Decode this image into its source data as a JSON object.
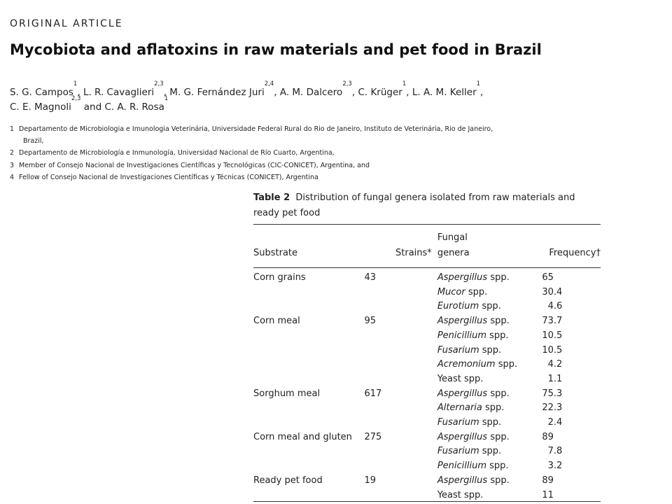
{
  "article": {
    "section_label": "ORIGINAL ARTICLE",
    "title": "Mycobiota and aflatoxins in raw materials and pet food in Brazil",
    "authors_line1": [
      {
        "name": "S. G. Campos",
        "sup": "1"
      },
      {
        "name": "L. R. Cavaglieri",
        "sup": "2,3"
      },
      {
        "name": "M. G. Fernández Juri",
        "sup": "2,4"
      },
      {
        "name": "A. M. Dalcero",
        "sup": "2,3"
      },
      {
        "name": "C. Krüger",
        "sup": "1"
      },
      {
        "name": "L. A. M. Keller",
        "sup": "1"
      }
    ],
    "authors_line2": [
      {
        "name": "C. E. Magnoli",
        "sup": "2,3"
      },
      {
        "name": "C. A. R. Rosa",
        "sup": "1"
      }
    ],
    "authors_and": "and",
    "affiliations": [
      {
        "num": "1",
        "text": "Departamento de Microbiologia e Imunologia Veterinária, Universidade Federal Rural do Rio de Janeiro, Instituto de Veterinária, Rio de Janeiro,",
        "cont": "Brazil,"
      },
      {
        "num": "2",
        "text": "Departamento de Microbiología e Inmunología, Universidad Nacional de Río Cuarto, Argentina,"
      },
      {
        "num": "3",
        "text": "Member of Consejo Nacional de Investigaciones Científicas y Tecnológicas (CIC-CONICET), Argentina, and"
      },
      {
        "num": "4",
        "text": "Fellow of Consejo Nacional de Investigaciones Científicas y Técnicas (CONICET), Argentina"
      }
    ]
  },
  "table": {
    "label": "Table 2",
    "caption": "Distribution of fungal genera isolated from raw materials and ready pet food",
    "headers": {
      "substrate": "Substrate",
      "strains": "Strains*",
      "genera_line1": "Fungal",
      "genera_line2": "genera",
      "frequency": "Frequency†"
    },
    "rows": [
      {
        "substrate": "Corn grains",
        "strains": "43",
        "genus": "Aspergillus",
        "suffix": " spp.",
        "frequency": "65"
      },
      {
        "substrate": "",
        "strains": "",
        "genus": "Mucor",
        "suffix": " spp.",
        "frequency": "30.4"
      },
      {
        "substrate": "",
        "strains": "",
        "genus": "Eurotium",
        "suffix": " spp.",
        "frequency": "4.6"
      },
      {
        "substrate": "Corn meal",
        "strains": "95",
        "genus": "Aspergillus",
        "suffix": " spp.",
        "frequency": "73.7"
      },
      {
        "substrate": "",
        "strains": "",
        "genus": "Penicillium",
        "suffix": " spp.",
        "frequency": "10.5"
      },
      {
        "substrate": "",
        "strains": "",
        "genus": "Fusarium",
        "suffix": " spp.",
        "frequency": "10.5"
      },
      {
        "substrate": "",
        "strains": "",
        "genus": "Acremonium",
        "suffix": " spp.",
        "frequency": "4.2"
      },
      {
        "substrate": "",
        "strains": "",
        "genus": "",
        "suffix": "Yeast spp.",
        "frequency": "1.1"
      },
      {
        "substrate": "Sorghum meal",
        "strains": "617",
        "genus": "Aspergillus",
        "suffix": " spp.",
        "frequency": "75.3"
      },
      {
        "substrate": "",
        "strains": "",
        "genus": "Alternaria",
        "suffix": " spp.",
        "frequency": "22.3"
      },
      {
        "substrate": "",
        "strains": "",
        "genus": "Fusarium",
        "suffix": " spp.",
        "frequency": "2.4"
      },
      {
        "substrate": "Corn meal and gluten",
        "strains": "275",
        "genus": "Aspergillus",
        "suffix": " spp.",
        "frequency": "89"
      },
      {
        "substrate": "",
        "strains": "",
        "genus": "Fusarium",
        "suffix": " spp.",
        "frequency": "7.8"
      },
      {
        "substrate": "",
        "strains": "",
        "genus": "Penicillium",
        "suffix": " spp.",
        "frequency": "3.2"
      },
      {
        "substrate": "Ready pet food",
        "strains": "19",
        "genus": "Aspergillus",
        "suffix": " spp.",
        "frequency": "89"
      },
      {
        "substrate": "",
        "strains": "",
        "genus": "",
        "suffix": "Yeast spp.",
        "frequency": "11"
      }
    ]
  }
}
